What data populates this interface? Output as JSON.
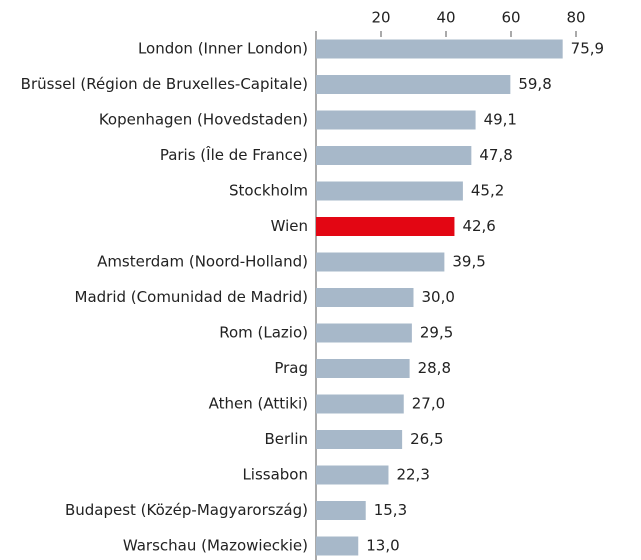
{
  "chart_data": {
    "type": "barh",
    "categories": [
      "London (Inner London)",
      "Brüssel (Région de Bruxelles-Capitale)",
      "Kopenhagen (Hovedstaden)",
      "Paris (Île de France)",
      "Stockholm",
      "Wien",
      "Amsterdam (Noord-Holland)",
      "Madrid (Comunidad de Madrid)",
      "Rom (Lazio)",
      "Prag",
      "Athen (Attiki)",
      "Berlin",
      "Lissabon",
      "Budapest (Közép-Magyarország)",
      "Warschau (Mazowieckie)"
    ],
    "values": [
      75.9,
      59.8,
      49.1,
      47.8,
      45.2,
      42.6,
      39.5,
      30.0,
      29.5,
      28.8,
      27.0,
      26.5,
      22.3,
      15.3,
      13.0
    ],
    "value_labels": [
      "75,9",
      "59,8",
      "49,1",
      "47,8",
      "45,2",
      "42,6",
      "39,5",
      "30,0",
      "29,5",
      "28,8",
      "27,0",
      "26,5",
      "22,3",
      "15,3",
      "13,0"
    ],
    "colors": [
      "#a7b8c9",
      "#a7b8c9",
      "#a7b8c9",
      "#a7b8c9",
      "#a7b8c9",
      "#e30613",
      "#a7b8c9",
      "#a7b8c9",
      "#a7b8c9",
      "#a7b8c9",
      "#a7b8c9",
      "#a7b8c9",
      "#a7b8c9",
      "#a7b8c9",
      "#a7b8c9"
    ],
    "xlim": [
      0,
      100
    ],
    "xticks": [
      20,
      40,
      60,
      80
    ],
    "xaxis_position": "top"
  }
}
